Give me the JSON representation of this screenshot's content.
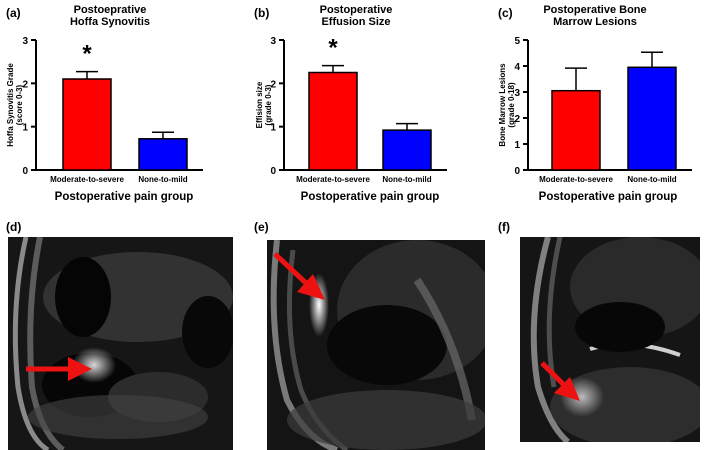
{
  "colors": {
    "red": "#ff0000",
    "blue": "#0000ff",
    "arrow": "#ee1111"
  },
  "chart_data": [
    {
      "type": "bar",
      "panel": "(a)",
      "title": [
        "Postoeprative",
        "Hoffa Synovitis"
      ],
      "ylabel": [
        "Hoffa Synovitis Grade",
        "(score 0-3)"
      ],
      "xlabel": "Postoperative pain group",
      "categories": [
        "Moderate-to-severe",
        "None-to-mild"
      ],
      "values": [
        2.1,
        0.72
      ],
      "errors": [
        0.17,
        0.15
      ],
      "ylim": [
        0,
        3
      ],
      "yticks": [
        "0",
        "1",
        "2",
        "3"
      ],
      "significance": [
        "*",
        ""
      ]
    },
    {
      "type": "bar",
      "panel": "(b)",
      "title": [
        "Postoperative",
        "Effusion Size"
      ],
      "ylabel": [
        "Effision size",
        "(grade 0-3)"
      ],
      "xlabel": "Postoperative pain group",
      "categories": [
        "Moderate-to-severe",
        "None-to-mild"
      ],
      "values": [
        2.25,
        0.92
      ],
      "errors": [
        0.16,
        0.15
      ],
      "ylim": [
        0,
        3
      ],
      "yticks": [
        "0",
        "1",
        "2",
        "3"
      ],
      "significance": [
        "*",
        ""
      ]
    },
    {
      "type": "bar",
      "panel": "(c)",
      "title": [
        "Postoperative Bone",
        "Marrow Lesions"
      ],
      "ylabel": [
        "Bone Marrow Lesions",
        "(grade 0-18)"
      ],
      "xlabel": "Postoperative pain group",
      "categories": [
        "Moderate-to-severe",
        "None-to-mild"
      ],
      "values": [
        3.05,
        3.95
      ],
      "errors": [
        0.87,
        0.58
      ],
      "ylim": [
        0,
        5
      ],
      "yticks": [
        "0",
        "1",
        "2",
        "3",
        "4",
        "5"
      ],
      "significance": [
        "",
        ""
      ]
    }
  ],
  "images": [
    {
      "panel": "(d)",
      "alt": "Sagittal knee MRI with arrow at Hoffa fat pad"
    },
    {
      "panel": "(e)",
      "alt": "Sagittal knee MRI with arrow at joint effusion"
    },
    {
      "panel": "(f)",
      "alt": "Sagittal knee MRI with arrow at bone marrow lesion"
    }
  ]
}
